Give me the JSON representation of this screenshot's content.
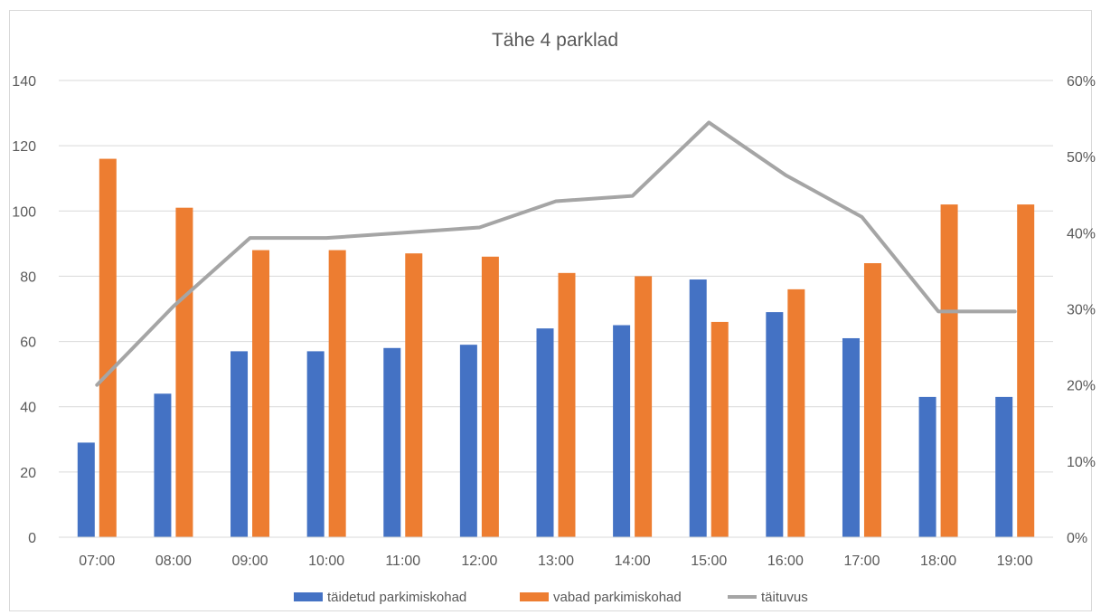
{
  "chart_data": {
    "type": "bar",
    "title": "Tähe 4 parklad",
    "categories": [
      "07:00",
      "08:00",
      "09:00",
      "10:00",
      "11:00",
      "12:00",
      "13:00",
      "14:00",
      "15:00",
      "16:00",
      "17:00",
      "18:00",
      "19:00"
    ],
    "series": [
      {
        "name": "täidetud parkimiskohad",
        "type": "bar",
        "axis": "left",
        "color": "#4472C4",
        "values": [
          29,
          44,
          57,
          57,
          58,
          59,
          64,
          65,
          79,
          69,
          61,
          43,
          43
        ]
      },
      {
        "name": "vabad parkimiskohad",
        "type": "bar",
        "axis": "left",
        "color": "#ED7D31",
        "values": [
          116,
          101,
          88,
          88,
          87,
          86,
          81,
          80,
          66,
          76,
          84,
          102,
          102
        ]
      },
      {
        "name": "täituvus",
        "type": "line",
        "axis": "right",
        "color": "#A5A5A5",
        "values": [
          0.2,
          0.3034,
          0.3931,
          0.3931,
          0.4,
          0.4069,
          0.4414,
          0.4483,
          0.5448,
          0.4759,
          0.4207,
          0.2966,
          0.2966
        ]
      }
    ],
    "y_left": {
      "min": 0,
      "max": 140,
      "ticks": [
        0,
        20,
        40,
        60,
        80,
        100,
        120,
        140
      ],
      "tick_labels": [
        "0",
        "20",
        "40",
        "60",
        "80",
        "100",
        "120",
        "140"
      ]
    },
    "y_right": {
      "min": 0,
      "max": 0.6,
      "ticks": [
        0,
        0.1,
        0.2,
        0.3,
        0.4,
        0.5,
        0.6
      ],
      "tick_labels": [
        "0%",
        "10%",
        "20%",
        "30%",
        "40%",
        "50%",
        "60%"
      ]
    },
    "grid": true,
    "legend_position": "bottom"
  }
}
